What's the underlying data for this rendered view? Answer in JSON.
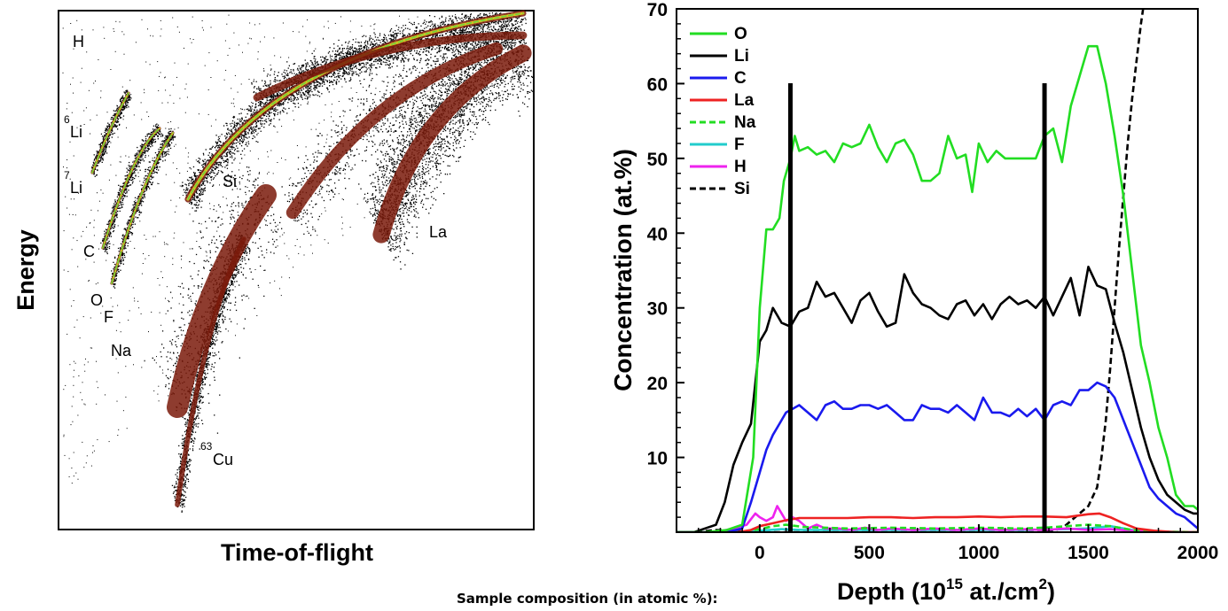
{
  "left_panel": {
    "xlabel": "Time-of-flight",
    "ylabel": "Energy",
    "labels": [
      {
        "id": "H",
        "text": "H"
      },
      {
        "id": "Li6",
        "sup": "6",
        "text": "Li"
      },
      {
        "id": "Li7",
        "sup": "7",
        "text": "Li"
      },
      {
        "id": "C",
        "text": "C"
      },
      {
        "id": "O",
        "text": "O"
      },
      {
        "id": "F",
        "text": "F"
      },
      {
        "id": "Na",
        "text": "Na"
      },
      {
        "id": "Si",
        "text": "Si"
      },
      {
        "id": "La",
        "text": "La"
      },
      {
        "id": "Cu63",
        "sup": "63",
        "text": "Cu"
      }
    ]
  },
  "caption": "Sample composition (in atomic %):",
  "chart_data": {
    "type": "line",
    "xlabel_prefix": "Depth (10",
    "xlabel_sup1": "15",
    "xlabel_mid": " at./cm",
    "xlabel_sup2": "2",
    "xlabel_suffix": ")",
    "ylabel": "Concentration (at.%)",
    "xlim": [
      -380,
      2000
    ],
    "ylim": [
      0,
      70
    ],
    "xticks": [
      0,
      500,
      1000,
      1500,
      2000
    ],
    "yticks": [
      10,
      20,
      30,
      40,
      50,
      60,
      70
    ],
    "legend_position": "top-left",
    "vertical_markers": [
      140,
      1300
    ],
    "series": [
      {
        "name": "O",
        "color": "#22dd22",
        "dashed": false,
        "x": [
          -380,
          -250,
          -150,
          -80,
          -30,
          0,
          30,
          60,
          90,
          110,
          140,
          160,
          180,
          220,
          260,
          300,
          340,
          380,
          420,
          460,
          500,
          540,
          580,
          620,
          660,
          700,
          740,
          780,
          820,
          860,
          900,
          940,
          970,
          1000,
          1040,
          1080,
          1120,
          1160,
          1200,
          1260,
          1300,
          1340,
          1380,
          1420,
          1460,
          1500,
          1540,
          1580,
          1620,
          1660,
          1700,
          1740,
          1780,
          1820,
          1860,
          1900,
          1940,
          1980,
          2000
        ],
        "y": [
          0,
          0,
          0.3,
          1,
          10,
          30,
          40.5,
          40.5,
          42,
          47,
          50,
          53,
          51,
          51.5,
          50.5,
          51,
          49.5,
          52,
          51.5,
          52,
          54.5,
          51.5,
          49.5,
          52,
          52.5,
          50.5,
          47,
          47,
          48,
          53,
          50,
          50.5,
          45.5,
          52,
          49.5,
          51,
          50,
          50,
          50,
          50,
          53,
          54,
          49.5,
          57,
          61,
          65,
          65,
          60,
          53,
          45,
          35,
          25,
          20,
          14,
          10,
          5,
          3.5,
          3.5,
          3
        ]
      },
      {
        "name": "Li",
        "color": "#000000",
        "dashed": false,
        "x": [
          -380,
          -300,
          -250,
          -200,
          -160,
          -120,
          -80,
          -40,
          0,
          30,
          60,
          100,
          140,
          180,
          220,
          260,
          300,
          340,
          380,
          420,
          460,
          500,
          540,
          580,
          620,
          660,
          700,
          740,
          780,
          820,
          860,
          900,
          940,
          980,
          1020,
          1060,
          1100,
          1140,
          1180,
          1220,
          1260,
          1300,
          1340,
          1380,
          1420,
          1460,
          1500,
          1540,
          1580,
          1620,
          1660,
          1700,
          1740,
          1780,
          1820,
          1860,
          1900,
          1940,
          1980,
          2000
        ],
        "y": [
          0,
          0,
          0.5,
          1,
          4,
          9,
          12,
          14.5,
          25.5,
          27,
          30,
          28,
          27.5,
          29.5,
          30,
          33.5,
          31.5,
          32,
          30,
          28,
          31,
          32,
          29.5,
          27.5,
          28,
          34.5,
          32,
          30.5,
          30,
          29,
          28.5,
          30.5,
          31,
          29,
          30.5,
          28.5,
          30.5,
          31.5,
          30.5,
          31,
          30,
          31.5,
          29,
          31.5,
          34,
          29,
          35.5,
          33,
          32.5,
          28,
          24,
          19,
          14,
          10,
          7,
          5,
          4,
          3,
          2.5,
          2.5
        ]
      },
      {
        "name": "C",
        "color": "#1a1aee",
        "dashed": false,
        "x": [
          -380,
          -250,
          -150,
          -80,
          -40,
          0,
          30,
          60,
          90,
          120,
          150,
          180,
          220,
          260,
          300,
          340,
          380,
          420,
          460,
          500,
          540,
          580,
          620,
          660,
          700,
          740,
          780,
          820,
          860,
          900,
          940,
          980,
          1020,
          1060,
          1100,
          1140,
          1180,
          1220,
          1260,
          1300,
          1340,
          1380,
          1420,
          1460,
          1500,
          1540,
          1580,
          1620,
          1660,
          1700,
          1740,
          1780,
          1820,
          1860,
          1900,
          1940,
          1980,
          2000
        ],
        "y": [
          0,
          0,
          0,
          0.5,
          4,
          8,
          11,
          13,
          14.5,
          16,
          16.5,
          17,
          16,
          15,
          17,
          17.5,
          16.5,
          16.5,
          17,
          17,
          16.5,
          17,
          16,
          15,
          15,
          17,
          16.5,
          16.5,
          16,
          17,
          16,
          15,
          18,
          16,
          16,
          15.5,
          16.5,
          15.5,
          16.5,
          15,
          17,
          17.5,
          17,
          19,
          19,
          20,
          19.5,
          18,
          15,
          12,
          9,
          6,
          4.5,
          3.5,
          2.5,
          2,
          1,
          0.5
        ]
      },
      {
        "name": "La",
        "color": "#ee2222",
        "dashed": false,
        "x": [
          -380,
          -100,
          -40,
          0,
          60,
          120,
          180,
          240,
          300,
          400,
          500,
          600,
          700,
          800,
          900,
          1000,
          1100,
          1200,
          1300,
          1400,
          1500,
          1550,
          1600,
          1660,
          1720,
          1800,
          1900,
          2000
        ],
        "y": [
          0,
          0,
          0.3,
          0.8,
          1.2,
          1.6,
          1.9,
          1.9,
          1.9,
          1.9,
          2.0,
          2.0,
          1.9,
          2.0,
          2.0,
          2.1,
          2.0,
          2.1,
          2.1,
          2.0,
          2.4,
          2.5,
          2.0,
          1.2,
          0.5,
          0.2,
          0,
          0
        ]
      },
      {
        "name": "Na",
        "color": "#22dd22",
        "dashed": true,
        "x": [
          -380,
          -100,
          0,
          60,
          120,
          200,
          300,
          400,
          600,
          800,
          1000,
          1200,
          1300,
          1400,
          1500,
          1600,
          1700,
          1800,
          2000
        ],
        "y": [
          0,
          0,
          0.4,
          0.8,
          1.0,
          0.7,
          0.6,
          0.5,
          0.6,
          0.5,
          0.6,
          0.5,
          0.6,
          0.8,
          1.0,
          0.8,
          0.3,
          0.1,
          0
        ]
      },
      {
        "name": "F",
        "color": "#22cccc",
        "dashed": false,
        "x": [
          -380,
          -100,
          0,
          100,
          200,
          400,
          600,
          800,
          1000,
          1200,
          1400,
          1500,
          1600,
          1700,
          1800,
          2000
        ],
        "y": [
          0,
          0,
          0.2,
          0.4,
          0.3,
          0.3,
          0.3,
          0.3,
          0.3,
          0.3,
          0.4,
          0.5,
          0.8,
          0.3,
          0.1,
          0
        ]
      },
      {
        "name": "H",
        "color": "#ee22ee",
        "dashed": false,
        "x": [
          -380,
          -200,
          -120,
          -60,
          -20,
          0,
          30,
          60,
          80,
          100,
          120,
          150,
          180,
          220,
          260,
          300,
          360,
          420,
          480,
          540,
          600,
          700,
          800,
          900,
          1000,
          1100,
          1200,
          1300,
          1400,
          1500,
          1600,
          1700,
          1800,
          1900,
          2000
        ],
        "y": [
          0,
          0,
          0.5,
          1,
          2.5,
          2,
          1.5,
          2,
          3.5,
          2.5,
          1.5,
          2,
          1.5,
          0.5,
          1,
          0.5,
          0.5,
          0.3,
          0.6,
          0.3,
          0.5,
          0.3,
          0.5,
          0.3,
          0.5,
          0.3,
          0.4,
          0.3,
          0.5,
          0.3,
          0.4,
          0.2,
          0.1,
          0,
          0
        ]
      },
      {
        "name": "Si",
        "color": "#000000",
        "dashed": true,
        "x": [
          -380,
          -300,
          -200,
          0,
          500,
          1000,
          1300,
          1380,
          1420,
          1460,
          1500,
          1540,
          1560,
          1580,
          1600,
          1620,
          1640,
          1660,
          1680,
          1700,
          1720,
          1740,
          1760
        ],
        "y": [
          0,
          0,
          0.3,
          0,
          0,
          0,
          0,
          0.5,
          1.5,
          2.5,
          3.5,
          6,
          10,
          15,
          22,
          30,
          38,
          45,
          52,
          58,
          63,
          68,
          72
        ]
      }
    ]
  }
}
